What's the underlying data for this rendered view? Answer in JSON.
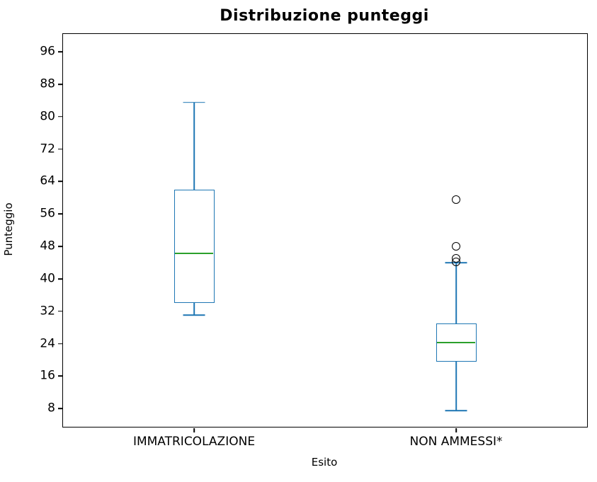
{
  "chart_data": {
    "type": "boxplot",
    "title": "Distribuzione punteggi",
    "xlabel": "Esito",
    "ylabel": "Punteggio",
    "categories": [
      "IMMATRICOLAZIONE",
      "NON AMMESSI*"
    ],
    "y_ticks": [
      96,
      88,
      80,
      72,
      64,
      56,
      48,
      40,
      32,
      24,
      16,
      8
    ],
    "ylim": [
      3.5,
      100.4
    ],
    "x_positions": [
      0.25,
      0.75
    ],
    "grid": false,
    "legend": "none",
    "boxes": [
      {
        "category": "IMMATRICOLAZIONE",
        "whisker_low": 31,
        "q1": 34,
        "median": 46.25,
        "q3": 62,
        "whisker_high": 83.5,
        "outliers": []
      },
      {
        "category": "NON AMMESSI*",
        "whisker_low": 7.5,
        "q1": 19.5,
        "median": 24.25,
        "q3": 29,
        "whisker_high": 44,
        "outliers": [
          44.25,
          45,
          48,
          59.5
        ]
      }
    ],
    "colors": {
      "box_edge": "#1f77b4",
      "median": "#2ca02c",
      "outlier_edge": "#000000",
      "axis": "#000000",
      "background": "#ffffff"
    }
  }
}
